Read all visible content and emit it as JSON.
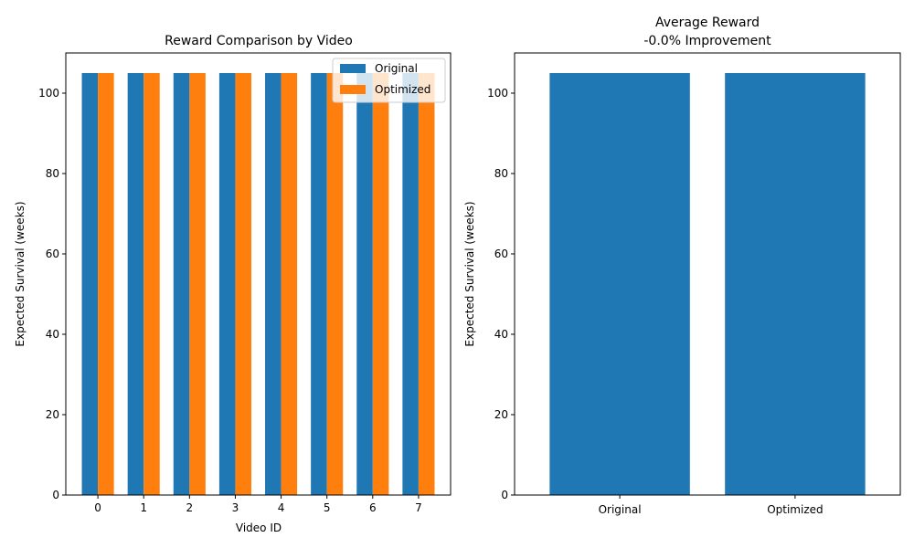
{
  "chart_data": [
    {
      "type": "bar",
      "title": "Reward Comparison by Video",
      "xlabel": "Video ID",
      "ylabel": "Expected Survival (weeks)",
      "categories": [
        "0",
        "1",
        "2",
        "3",
        "4",
        "5",
        "6",
        "7"
      ],
      "series": [
        {
          "name": "Original",
          "color": "#1f77b4",
          "values": [
            105,
            105,
            105,
            105,
            105,
            105,
            105,
            105
          ]
        },
        {
          "name": "Optimized",
          "color": "#ff7f0e",
          "values": [
            105,
            105,
            105,
            105,
            105,
            105,
            105,
            105
          ]
        }
      ],
      "ylim": [
        0,
        110
      ],
      "yticks": [
        "0",
        "20",
        "40",
        "60",
        "80",
        "100"
      ],
      "legend": "top-right",
      "grid": false
    },
    {
      "type": "bar",
      "title": "Average Reward",
      "subtitle": "-0.0% Improvement",
      "xlabel": "",
      "ylabel": "Expected Survival (weeks)",
      "categories": [
        "Original",
        "Optimized"
      ],
      "values": [
        105,
        105
      ],
      "color": "#1f77b4",
      "ylim": [
        0,
        110
      ],
      "yticks": [
        "0",
        "20",
        "40",
        "60",
        "80",
        "100"
      ],
      "grid": false
    }
  ]
}
